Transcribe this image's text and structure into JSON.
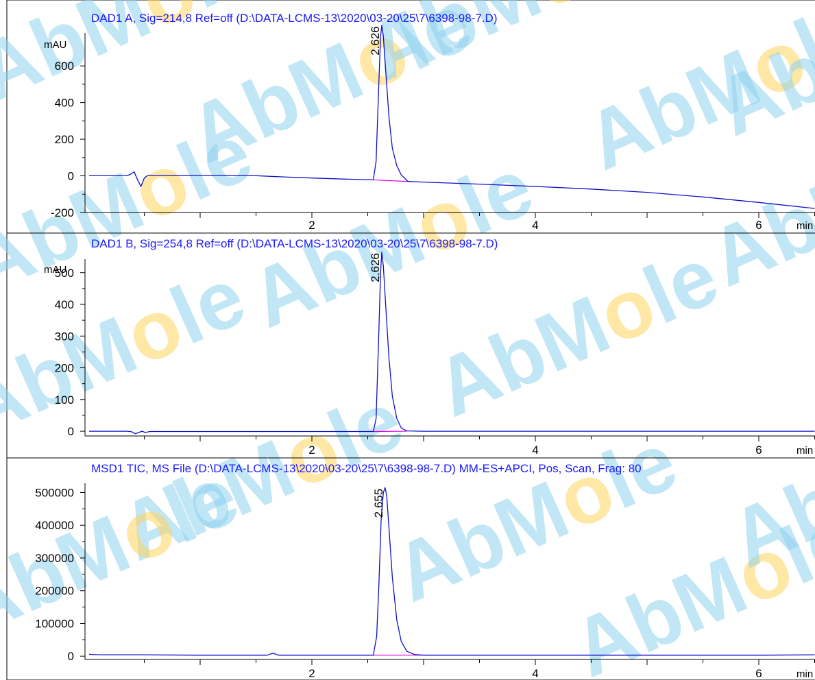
{
  "watermark": {
    "text": "AbMole",
    "main_color": "#8fd3ef",
    "accent_color": "#ffd45e"
  },
  "colors": {
    "trace": "#1010c8",
    "baseline": "#e000e0",
    "axis": "#000000",
    "title": "#1a1aff"
  },
  "chart_data": [
    {
      "type": "line",
      "title": "DAD1 A, Sig=214,8 Ref=off (D:\\DATA-LCMS-13\\2020\\03-20\\25\\7\\6398-98-7.D)",
      "ylabel": "mAU",
      "xlabel": "min",
      "xlim": [
        0.0,
        6.5
      ],
      "ylim": [
        -200,
        810
      ],
      "x_ticks": [
        "2",
        "4",
        "6"
      ],
      "y_ticks": [
        "-200",
        "0",
        "200",
        "400",
        "600"
      ],
      "grid": false,
      "peak_label": "2.626",
      "series": [
        {
          "x": [
            0.0,
            0.35,
            0.38,
            0.41,
            0.44,
            0.47,
            0.5,
            0.53,
            1.0,
            1.45,
            1.75,
            2.0,
            2.3,
            2.55,
            2.575,
            2.6,
            2.615,
            2.626,
            2.64,
            2.66,
            2.69,
            2.72,
            2.76,
            2.8,
            2.86,
            3.0,
            3.5,
            4.0,
            4.5,
            5.0,
            5.5,
            6.0,
            6.5
          ],
          "values": [
            2,
            2,
            10,
            22,
            -22,
            -58,
            -12,
            2,
            2,
            2,
            -6,
            -12,
            -18,
            -22,
            80,
            520,
            760,
            822,
            760,
            580,
            320,
            150,
            55,
            5,
            -30,
            -34,
            -45,
            -58,
            -72,
            -90,
            -115,
            -145,
            -178
          ]
        }
      ],
      "baseline": {
        "x": [
          2.55,
          2.9
        ],
        "values": [
          -22,
          -32
        ]
      }
    },
    {
      "type": "line",
      "title": "DAD1 B, Sig=254,8 Ref=off (D:\\DATA-LCMS-13\\2020\\03-20\\25\\7\\6398-98-7.D)",
      "ylabel": "mAU",
      "xlabel": "min",
      "xlim": [
        0.0,
        6.5
      ],
      "ylim": [
        -15,
        560
      ],
      "x_ticks": [
        "2",
        "4",
        "6"
      ],
      "y_ticks": [
        "0",
        "100",
        "200",
        "300",
        "400",
        "500"
      ],
      "grid": false,
      "peak_label": "2.626",
      "series": [
        {
          "x": [
            0.0,
            0.35,
            0.39,
            0.42,
            0.45,
            0.48,
            0.51,
            0.55,
            1.0,
            2.0,
            2.55,
            2.575,
            2.6,
            2.615,
            2.626,
            2.64,
            2.66,
            2.69,
            2.72,
            2.76,
            2.8,
            2.85,
            3.0,
            4.0,
            5.0,
            6.0,
            6.5
          ],
          "values": [
            0,
            0,
            -2,
            -8,
            -4,
            0,
            -4,
            -1,
            -1,
            -1,
            -1,
            40,
            320,
            500,
            565,
            520,
            400,
            230,
            110,
            40,
            10,
            1,
            0,
            0,
            0,
            0,
            0
          ]
        }
      ],
      "baseline": {
        "x": [
          2.55,
          2.85
        ],
        "values": [
          -1,
          0
        ]
      }
    },
    {
      "type": "line",
      "title": "MSD1 TIC, MS File (D:\\DATA-LCMS-13\\2020\\03-20\\25\\7\\6398-98-7.D)    MM-ES+APCI, Pos, Scan, Frag: 80",
      "ylabel": "",
      "xlabel": "min",
      "xlim": [
        0.0,
        6.5
      ],
      "ylim": [
        -10000,
        545000
      ],
      "x_ticks": [
        "2",
        "4",
        "6"
      ],
      "y_ticks": [
        "0",
        "100000",
        "200000",
        "300000",
        "400000",
        "500000"
      ],
      "grid": false,
      "peak_label": "2.655",
      "series": [
        {
          "x": [
            -0.1,
            0.0,
            0.1,
            0.5,
            1.0,
            1.6,
            1.65,
            1.7,
            2.0,
            2.4,
            2.55,
            2.58,
            2.6,
            2.62,
            2.64,
            2.655,
            2.67,
            2.69,
            2.72,
            2.76,
            2.8,
            2.85,
            2.92,
            3.0,
            4.0,
            5.0,
            6.0,
            6.5
          ],
          "values": [
            14000,
            6000,
            4000,
            4000,
            3000,
            3000,
            9000,
            3000,
            3000,
            3000,
            3000,
            60000,
            220000,
            420000,
            500000,
            515000,
            490000,
            390000,
            240000,
            110000,
            45000,
            15000,
            5000,
            3000,
            3000,
            3000,
            3000,
            4000
          ]
        }
      ],
      "baseline": {
        "x": [
          2.55,
          2.98
        ],
        "values": [
          3000,
          3000
        ]
      }
    }
  ]
}
